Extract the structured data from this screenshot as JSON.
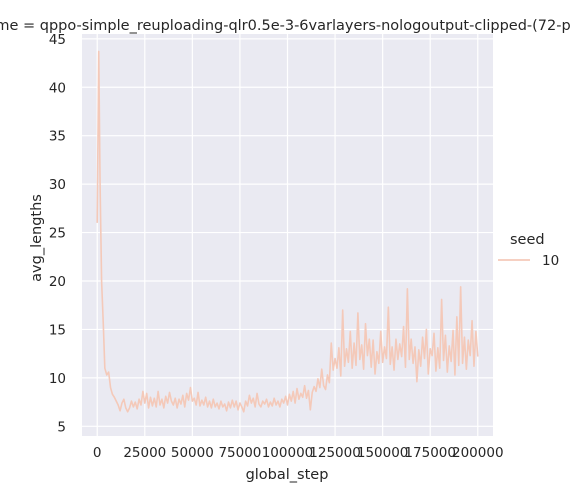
{
  "chart_data": {
    "type": "line",
    "title": "me = qppo-simple_reuploading-qlr0.5e-3-6varlayers-nologoutput-clipped-(72-p",
    "xlabel": "global_step",
    "ylabel": "avg_lengths",
    "xlim": [
      -8000,
      208000
    ],
    "ylim": [
      4,
      45.5
    ],
    "x_ticks": [
      0,
      25000,
      50000,
      75000,
      100000,
      125000,
      150000,
      175000,
      200000
    ],
    "y_ticks": [
      5,
      10,
      15,
      20,
      25,
      30,
      35,
      40,
      45
    ],
    "grid": true,
    "legend": {
      "title": "seed",
      "placement": "right",
      "entries": [
        "10"
      ]
    },
    "series": [
      {
        "name": "10",
        "color": "#f4c9b9",
        "points": [
          [
            0,
            26
          ],
          [
            800,
            43.7
          ],
          [
            1500,
            30
          ],
          [
            2300,
            20
          ],
          [
            3200,
            15.5
          ],
          [
            4000,
            11
          ],
          [
            5000,
            10.3
          ],
          [
            6000,
            10.6
          ],
          [
            7000,
            9
          ],
          [
            8000,
            8.3
          ],
          [
            9000,
            8.0
          ],
          [
            10000,
            7.6
          ],
          [
            11000,
            7.2
          ],
          [
            12000,
            6.6
          ],
          [
            13000,
            7.4
          ],
          [
            14000,
            7.8
          ],
          [
            15000,
            6.9
          ],
          [
            16000,
            6.5
          ],
          [
            17000,
            6.9
          ],
          [
            18000,
            7.6
          ],
          [
            19000,
            7.0
          ],
          [
            20000,
            7.5
          ],
          [
            21000,
            6.8
          ],
          [
            22000,
            7.8
          ],
          [
            23000,
            7.2
          ],
          [
            24000,
            8.6
          ],
          [
            25000,
            7.4
          ],
          [
            26000,
            8.4
          ],
          [
            27000,
            6.9
          ],
          [
            28000,
            8.0
          ],
          [
            29000,
            7.1
          ],
          [
            30000,
            7.9
          ],
          [
            31000,
            7.0
          ],
          [
            32000,
            8.6
          ],
          [
            33000,
            7.2
          ],
          [
            34000,
            7.8
          ],
          [
            35000,
            6.9
          ],
          [
            36000,
            8.1
          ],
          [
            37000,
            7.4
          ],
          [
            38000,
            8.5
          ],
          [
            39000,
            7.6
          ],
          [
            40000,
            7.2
          ],
          [
            41000,
            7.9
          ],
          [
            42000,
            6.9
          ],
          [
            43000,
            7.8
          ],
          [
            44000,
            7.3
          ],
          [
            45000,
            8.2
          ],
          [
            46000,
            7.0
          ],
          [
            47000,
            8.4
          ],
          [
            48000,
            7.7
          ],
          [
            49000,
            9.0
          ],
          [
            50000,
            7.6
          ],
          [
            51000,
            7.9
          ],
          [
            52000,
            7.2
          ],
          [
            53000,
            8.5
          ],
          [
            54000,
            7.1
          ],
          [
            55000,
            7.7
          ],
          [
            56000,
            7.2
          ],
          [
            57000,
            8.0
          ],
          [
            58000,
            7.0
          ],
          [
            59000,
            7.6
          ],
          [
            60000,
            6.9
          ],
          [
            61000,
            7.8
          ],
          [
            62000,
            7.0
          ],
          [
            63000,
            7.4
          ],
          [
            64000,
            6.8
          ],
          [
            65000,
            7.6
          ],
          [
            66000,
            7.0
          ],
          [
            67000,
            7.3
          ],
          [
            68000,
            6.6
          ],
          [
            69000,
            7.5
          ],
          [
            70000,
            6.9
          ],
          [
            71000,
            7.7
          ],
          [
            72000,
            7.0
          ],
          [
            73000,
            7.6
          ],
          [
            74000,
            6.7
          ],
          [
            75000,
            7.4
          ],
          [
            76000,
            7.0
          ],
          [
            77000,
            6.5
          ],
          [
            78000,
            7.6
          ],
          [
            79000,
            7.1
          ],
          [
            80000,
            8.2
          ],
          [
            81000,
            7.4
          ],
          [
            82000,
            7.9
          ],
          [
            83000,
            7.0
          ],
          [
            84000,
            8.4
          ],
          [
            85000,
            7.3
          ],
          [
            86000,
            7.0
          ],
          [
            87000,
            7.6
          ],
          [
            88000,
            7.3
          ],
          [
            89000,
            7.8
          ],
          [
            90000,
            7.0
          ],
          [
            91000,
            7.5
          ],
          [
            92000,
            7.1
          ],
          [
            93000,
            7.9
          ],
          [
            94000,
            7.2
          ],
          [
            95000,
            7.6
          ],
          [
            96000,
            7.0
          ],
          [
            97000,
            7.8
          ],
          [
            98000,
            7.4
          ],
          [
            99000,
            8.1
          ],
          [
            100000,
            7.2
          ],
          [
            101000,
            8.3
          ],
          [
            102000,
            7.6
          ],
          [
            103000,
            8.6
          ],
          [
            104000,
            7.4
          ],
          [
            105000,
            8.9
          ],
          [
            106000,
            7.8
          ],
          [
            107000,
            8.4
          ],
          [
            108000,
            8.0
          ],
          [
            109000,
            9.2
          ],
          [
            110000,
            7.9
          ],
          [
            111000,
            8.7
          ],
          [
            112000,
            6.7
          ],
          [
            113000,
            8.5
          ],
          [
            114000,
            9.1
          ],
          [
            115000,
            8.6
          ],
          [
            116000,
            9.9
          ],
          [
            117000,
            9.0
          ],
          [
            118000,
            10.9
          ],
          [
            119000,
            9.2
          ],
          [
            120000,
            8.8
          ],
          [
            121000,
            10.3
          ],
          [
            122000,
            9.5
          ],
          [
            123000,
            13.6
          ],
          [
            124000,
            10.8
          ],
          [
            125000,
            12.0
          ],
          [
            126000,
            11.0
          ],
          [
            127000,
            13.1
          ],
          [
            128000,
            10.2
          ],
          [
            129000,
            17.0
          ],
          [
            130000,
            11.2
          ],
          [
            131000,
            13.0
          ],
          [
            132000,
            11.6
          ],
          [
            133000,
            14.8
          ],
          [
            134000,
            11.0
          ],
          [
            135000,
            13.6
          ],
          [
            136000,
            11.3
          ],
          [
            137000,
            16.7
          ],
          [
            138000,
            11.9
          ],
          [
            139000,
            13.4
          ],
          [
            140000,
            10.9
          ],
          [
            141000,
            15.6
          ],
          [
            142000,
            12.3
          ],
          [
            143000,
            14.0
          ],
          [
            144000,
            11.1
          ],
          [
            145000,
            13.9
          ],
          [
            146000,
            10.4
          ],
          [
            147000,
            12.7
          ],
          [
            148000,
            11.5
          ],
          [
            149000,
            14.8
          ],
          [
            150000,
            11.6
          ],
          [
            151000,
            13.2
          ],
          [
            152000,
            12.0
          ],
          [
            153000,
            17.3
          ],
          [
            154000,
            11.4
          ],
          [
            155000,
            13.2
          ],
          [
            156000,
            10.8
          ],
          [
            157000,
            14.0
          ],
          [
            158000,
            11.9
          ],
          [
            159000,
            13.5
          ],
          [
            160000,
            12.2
          ],
          [
            161000,
            15.3
          ],
          [
            162000,
            11.1
          ],
          [
            163000,
            19.2
          ],
          [
            164000,
            11.9
          ],
          [
            165000,
            14.0
          ],
          [
            166000,
            11.5
          ],
          [
            167000,
            13.2
          ],
          [
            168000,
            9.6
          ],
          [
            169000,
            12.9
          ],
          [
            170000,
            11.2
          ],
          [
            171000,
            14.2
          ],
          [
            172000,
            12.0
          ],
          [
            173000,
            15.0
          ],
          [
            174000,
            10.4
          ],
          [
            175000,
            13.0
          ],
          [
            176000,
            12.3
          ],
          [
            177000,
            14.6
          ],
          [
            178000,
            10.7
          ],
          [
            179000,
            13.1
          ],
          [
            180000,
            11.0
          ],
          [
            181000,
            18.1
          ],
          [
            182000,
            11.8
          ],
          [
            183000,
            14.4
          ],
          [
            184000,
            10.6
          ],
          [
            185000,
            13.3
          ],
          [
            186000,
            11.7
          ],
          [
            187000,
            14.9
          ],
          [
            188000,
            10.3
          ],
          [
            189000,
            16.3
          ],
          [
            190000,
            11.3
          ],
          [
            191000,
            19.4
          ],
          [
            192000,
            11.5
          ],
          [
            193000,
            14.2
          ],
          [
            194000,
            10.9
          ],
          [
            195000,
            13.9
          ],
          [
            196000,
            12.3
          ],
          [
            197000,
            15.9
          ],
          [
            198000,
            11.2
          ],
          [
            199000,
            14.8
          ],
          [
            200000,
            12.2
          ]
        ]
      }
    ]
  }
}
